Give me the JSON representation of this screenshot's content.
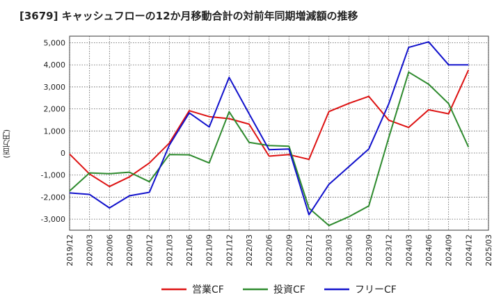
{
  "chart_data": {
    "type": "line",
    "title": "[3679]  キャッシュフローの12か月移動合計の対前年同期増減額の推移",
    "ylabel": "(百万円)",
    "ylim": [
      -3500,
      5300
    ],
    "yticks": [
      5000,
      4000,
      3000,
      2000,
      1000,
      0,
      -1000,
      -2000,
      -3000
    ],
    "ytick_labels": [
      "5,000",
      "4,000",
      "3,000",
      "2,000",
      "1,000",
      "0",
      "-1,000",
      "-2,000",
      "-3,000"
    ],
    "categories": [
      "2019/12",
      "2020/03",
      "2020/06",
      "2020/09",
      "2020/12",
      "2021/03",
      "2021/06",
      "2021/09",
      "2021/12",
      "2022/03",
      "2022/06",
      "2022/09",
      "2022/12",
      "2023/03",
      "2023/06",
      "2023/09",
      "2023/12",
      "2024/03",
      "2024/06",
      "2024/09",
      "2024/12",
      "2025/03"
    ],
    "grid": true,
    "legend_position": "bottom",
    "series": [
      {
        "name": "営業CF",
        "color": "#dd1111",
        "values": [
          -50,
          -950,
          -1520,
          -1080,
          -450,
          450,
          1920,
          1650,
          1560,
          1310,
          -140,
          -70,
          -290,
          1880,
          2250,
          2570,
          1490,
          1160,
          1960,
          1780,
          3770,
          null
        ]
      },
      {
        "name": "投資CF",
        "color": "#2d8a2d",
        "values": [
          -1720,
          -900,
          -940,
          -870,
          -1300,
          -70,
          -80,
          -450,
          1870,
          480,
          340,
          310,
          -2500,
          -3290,
          -2890,
          -2400,
          700,
          3670,
          3120,
          2240,
          270,
          null
        ]
      },
      {
        "name": "フリーCF",
        "color": "#1111cc",
        "values": [
          -1810,
          -1880,
          -2490,
          -1940,
          -1780,
          350,
          1820,
          1180,
          3430,
          1780,
          150,
          180,
          -2800,
          -1420,
          -620,
          180,
          2230,
          4790,
          5040,
          4000,
          4000,
          null
        ]
      }
    ]
  }
}
